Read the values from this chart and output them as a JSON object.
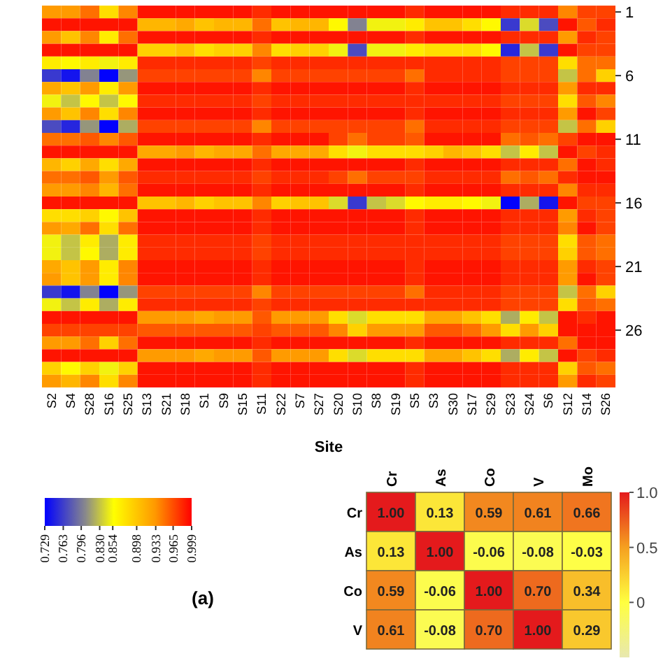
{
  "chart_data": [
    {
      "type": "heatmap",
      "xlabel": "Site",
      "categories": [
        "S2",
        "S4",
        "S28",
        "S16",
        "S25",
        "S13",
        "S21",
        "S18",
        "S1",
        "S9",
        "S15",
        "S11",
        "S22",
        "S7",
        "S27",
        "S20",
        "S10",
        "S8",
        "S19",
        "S5",
        "S3",
        "S30",
        "S17",
        "S29",
        "S23",
        "S24",
        "S6",
        "S12",
        "S14",
        "S26"
      ],
      "y_categories": [
        "1",
        null,
        null,
        null,
        null,
        "6",
        null,
        null,
        null,
        null,
        "11",
        null,
        null,
        null,
        null,
        "16",
        null,
        null,
        null,
        null,
        "21",
        null,
        null,
        null,
        null,
        "26",
        null,
        null,
        null,
        null
      ],
      "cells": [
        [
          0.93,
          0.93,
          0.95,
          0.88,
          0.94,
          0.99,
          0.99,
          0.99,
          0.99,
          0.99,
          0.99,
          0.98,
          0.99,
          0.99,
          0.99,
          0.99,
          0.99,
          0.99,
          0.99,
          0.98,
          0.99,
          0.99,
          0.99,
          0.99,
          0.98,
          0.98,
          0.98,
          0.94,
          0.97,
          0.97
        ],
        [
          0.99,
          0.99,
          0.99,
          0.99,
          0.99,
          0.91,
          0.91,
          0.92,
          0.9,
          0.91,
          0.91,
          0.95,
          0.9,
          0.91,
          0.91,
          0.86,
          0.8,
          0.85,
          0.85,
          0.87,
          0.9,
          0.9,
          0.88,
          0.86,
          0.76,
          0.84,
          0.77,
          0.99,
          0.96,
          0.98
        ],
        [
          0.93,
          0.9,
          0.94,
          0.87,
          0.95,
          0.99,
          0.99,
          0.99,
          0.99,
          0.99,
          0.99,
          0.98,
          0.99,
          0.99,
          0.99,
          0.99,
          0.99,
          0.99,
          0.99,
          0.98,
          0.99,
          0.99,
          0.99,
          0.99,
          0.98,
          0.98,
          0.98,
          0.93,
          0.98,
          0.97
        ],
        [
          0.99,
          0.99,
          0.99,
          0.99,
          0.99,
          0.89,
          0.89,
          0.9,
          0.88,
          0.89,
          0.89,
          0.94,
          0.88,
          0.89,
          0.89,
          0.85,
          0.77,
          0.85,
          0.85,
          0.87,
          0.88,
          0.88,
          0.88,
          0.86,
          0.75,
          0.83,
          0.76,
          0.99,
          0.97,
          0.97
        ],
        [
          0.87,
          0.86,
          0.87,
          0.85,
          0.87,
          0.98,
          0.98,
          0.98,
          0.98,
          0.98,
          0.98,
          0.97,
          0.98,
          0.98,
          0.98,
          0.98,
          0.98,
          0.98,
          0.98,
          0.98,
          0.98,
          0.98,
          0.98,
          0.98,
          0.97,
          0.97,
          0.97,
          0.88,
          0.95,
          0.95
        ],
        [
          0.76,
          0.74,
          0.8,
          0.73,
          0.81,
          0.97,
          0.97,
          0.97,
          0.97,
          0.97,
          0.97,
          0.94,
          0.97,
          0.97,
          0.97,
          0.97,
          0.97,
          0.97,
          0.97,
          0.95,
          0.98,
          0.98,
          0.98,
          0.98,
          0.97,
          0.97,
          0.97,
          0.83,
          0.95,
          0.89
        ],
        [
          0.92,
          0.9,
          0.93,
          0.87,
          0.93,
          0.99,
          0.99,
          0.99,
          0.99,
          0.99,
          0.99,
          0.98,
          0.99,
          0.99,
          0.99,
          0.99,
          0.99,
          0.99,
          0.99,
          0.98,
          0.99,
          0.99,
          0.99,
          0.99,
          0.98,
          0.98,
          0.98,
          0.93,
          0.98,
          0.98
        ],
        [
          0.85,
          0.83,
          0.86,
          0.83,
          0.86,
          0.98,
          0.98,
          0.98,
          0.98,
          0.98,
          0.98,
          0.97,
          0.98,
          0.98,
          0.98,
          0.98,
          0.98,
          0.98,
          0.98,
          0.98,
          0.98,
          0.98,
          0.98,
          0.98,
          0.97,
          0.97,
          0.97,
          0.88,
          0.96,
          0.94
        ],
        [
          0.93,
          0.9,
          0.94,
          0.88,
          0.94,
          0.99,
          0.99,
          0.99,
          0.99,
          0.99,
          0.99,
          0.98,
          0.99,
          0.99,
          0.99,
          0.99,
          0.99,
          0.99,
          0.99,
          0.98,
          0.99,
          0.99,
          0.99,
          0.99,
          0.98,
          0.98,
          0.98,
          0.93,
          0.99,
          0.97
        ],
        [
          0.77,
          0.75,
          0.81,
          0.73,
          0.82,
          0.97,
          0.97,
          0.97,
          0.97,
          0.97,
          0.97,
          0.94,
          0.97,
          0.97,
          0.97,
          0.97,
          0.97,
          0.97,
          0.97,
          0.95,
          0.98,
          0.98,
          0.98,
          0.98,
          0.97,
          0.97,
          0.97,
          0.83,
          0.95,
          0.89
        ],
        [
          0.95,
          0.95,
          0.96,
          0.94,
          0.96,
          0.99,
          0.99,
          0.99,
          0.99,
          0.99,
          0.99,
          0.98,
          0.99,
          0.99,
          0.99,
          0.97,
          0.95,
          0.97,
          0.97,
          0.96,
          0.99,
          0.99,
          0.99,
          0.99,
          0.95,
          0.96,
          0.95,
          0.97,
          0.99,
          0.99
        ],
        [
          0.99,
          0.99,
          0.99,
          0.99,
          0.99,
          0.92,
          0.92,
          0.93,
          0.91,
          0.92,
          0.92,
          0.95,
          0.92,
          0.92,
          0.92,
          0.88,
          0.85,
          0.88,
          0.88,
          0.88,
          0.89,
          0.91,
          0.9,
          0.88,
          0.83,
          0.87,
          0.83,
          0.99,
          0.97,
          0.98
        ],
        [
          0.91,
          0.89,
          0.92,
          0.88,
          0.92,
          0.99,
          0.99,
          0.99,
          0.99,
          0.99,
          0.99,
          0.98,
          0.99,
          0.99,
          0.99,
          0.99,
          0.99,
          0.99,
          0.99,
          0.98,
          0.99,
          0.99,
          0.99,
          0.99,
          0.98,
          0.98,
          0.98,
          0.95,
          0.99,
          0.98
        ],
        [
          0.95,
          0.95,
          0.96,
          0.93,
          0.96,
          0.98,
          0.98,
          0.98,
          0.98,
          0.98,
          0.98,
          0.97,
          0.98,
          0.98,
          0.98,
          0.97,
          0.95,
          0.97,
          0.97,
          0.97,
          0.98,
          0.98,
          0.98,
          0.98,
          0.95,
          0.96,
          0.95,
          0.98,
          0.99,
          0.99
        ],
        [
          0.93,
          0.93,
          0.94,
          0.91,
          0.95,
          0.99,
          0.99,
          0.99,
          0.99,
          0.99,
          0.99,
          0.98,
          0.99,
          0.99,
          0.99,
          0.99,
          0.99,
          0.99,
          0.99,
          0.98,
          0.99,
          0.99,
          0.99,
          0.99,
          0.98,
          0.98,
          0.98,
          0.94,
          0.98,
          0.98
        ],
        [
          0.99,
          0.99,
          0.99,
          0.99,
          0.99,
          0.9,
          0.9,
          0.91,
          0.89,
          0.9,
          0.9,
          0.94,
          0.89,
          0.9,
          0.9,
          0.84,
          0.76,
          0.83,
          0.84,
          0.86,
          0.87,
          0.87,
          0.86,
          0.85,
          0.73,
          0.82,
          0.74,
          0.99,
          0.97,
          0.97
        ],
        [
          0.88,
          0.88,
          0.89,
          0.86,
          0.9,
          0.99,
          0.99,
          0.99,
          0.99,
          0.99,
          0.99,
          0.98,
          0.99,
          0.99,
          0.99,
          0.99,
          0.99,
          0.99,
          0.99,
          0.98,
          0.99,
          0.99,
          0.99,
          0.99,
          0.98,
          0.98,
          0.98,
          0.93,
          0.98,
          0.97
        ],
        [
          0.93,
          0.92,
          0.95,
          0.88,
          0.95,
          0.99,
          0.99,
          0.99,
          0.99,
          0.99,
          0.99,
          0.98,
          0.99,
          0.99,
          0.99,
          0.99,
          0.99,
          0.99,
          0.99,
          0.98,
          0.99,
          0.99,
          0.99,
          0.99,
          0.98,
          0.98,
          0.98,
          0.94,
          0.99,
          0.97
        ],
        [
          0.85,
          0.83,
          0.87,
          0.82,
          0.87,
          0.98,
          0.98,
          0.98,
          0.98,
          0.98,
          0.98,
          0.97,
          0.98,
          0.98,
          0.98,
          0.98,
          0.98,
          0.98,
          0.98,
          0.98,
          0.98,
          0.98,
          0.98,
          0.98,
          0.97,
          0.97,
          0.97,
          0.88,
          0.96,
          0.95
        ],
        [
          0.85,
          0.83,
          0.86,
          0.82,
          0.87,
          0.98,
          0.98,
          0.98,
          0.98,
          0.98,
          0.98,
          0.97,
          0.98,
          0.98,
          0.98,
          0.98,
          0.98,
          0.98,
          0.98,
          0.98,
          0.98,
          0.98,
          0.98,
          0.98,
          0.97,
          0.97,
          0.97,
          0.89,
          0.96,
          0.95
        ],
        [
          0.92,
          0.9,
          0.93,
          0.87,
          0.94,
          0.99,
          0.99,
          0.99,
          0.99,
          0.99,
          0.99,
          0.98,
          0.99,
          0.99,
          0.99,
          0.99,
          0.99,
          0.99,
          0.99,
          0.98,
          0.99,
          0.99,
          0.99,
          0.99,
          0.98,
          0.98,
          0.98,
          0.93,
          0.98,
          0.97
        ],
        [
          0.93,
          0.9,
          0.93,
          0.87,
          0.94,
          0.99,
          0.99,
          0.99,
          0.99,
          0.99,
          0.99,
          0.98,
          0.99,
          0.99,
          0.99,
          0.99,
          0.99,
          0.99,
          0.99,
          0.98,
          0.99,
          0.99,
          0.99,
          0.99,
          0.98,
          0.98,
          0.98,
          0.93,
          0.99,
          0.97
        ],
        [
          0.76,
          0.74,
          0.8,
          0.73,
          0.81,
          0.97,
          0.97,
          0.97,
          0.97,
          0.97,
          0.97,
          0.94,
          0.97,
          0.97,
          0.97,
          0.97,
          0.97,
          0.97,
          0.97,
          0.95,
          0.98,
          0.98,
          0.98,
          0.98,
          0.97,
          0.97,
          0.97,
          0.83,
          0.95,
          0.89
        ],
        [
          0.85,
          0.83,
          0.87,
          0.82,
          0.87,
          0.98,
          0.98,
          0.98,
          0.98,
          0.98,
          0.98,
          0.97,
          0.98,
          0.98,
          0.98,
          0.98,
          0.98,
          0.98,
          0.98,
          0.98,
          0.98,
          0.98,
          0.98,
          0.98,
          0.97,
          0.97,
          0.97,
          0.88,
          0.96,
          0.95
        ],
        [
          0.99,
          0.99,
          0.99,
          0.99,
          0.99,
          0.93,
          0.93,
          0.93,
          0.92,
          0.93,
          0.93,
          0.96,
          0.93,
          0.93,
          0.93,
          0.88,
          0.84,
          0.88,
          0.88,
          0.88,
          0.92,
          0.92,
          0.9,
          0.88,
          0.82,
          0.87,
          0.83,
          0.99,
          0.98,
          0.99
        ],
        [
          0.97,
          0.97,
          0.97,
          0.97,
          0.97,
          0.96,
          0.96,
          0.96,
          0.96,
          0.96,
          0.96,
          0.97,
          0.96,
          0.96,
          0.96,
          0.94,
          0.89,
          0.93,
          0.93,
          0.93,
          0.96,
          0.96,
          0.95,
          0.93,
          0.88,
          0.93,
          0.89,
          0.99,
          0.99,
          0.99
        ],
        [
          0.93,
          0.93,
          0.95,
          0.89,
          0.95,
          0.99,
          0.99,
          0.99,
          0.99,
          0.99,
          0.99,
          0.98,
          0.99,
          0.99,
          0.99,
          0.99,
          0.99,
          0.99,
          0.99,
          0.98,
          0.99,
          0.99,
          0.99,
          0.99,
          0.98,
          0.98,
          0.98,
          0.95,
          0.99,
          0.99
        ],
        [
          0.99,
          0.99,
          0.99,
          0.99,
          0.99,
          0.93,
          0.93,
          0.93,
          0.92,
          0.93,
          0.93,
          0.96,
          0.93,
          0.93,
          0.93,
          0.88,
          0.84,
          0.88,
          0.88,
          0.88,
          0.92,
          0.92,
          0.9,
          0.88,
          0.82,
          0.87,
          0.83,
          0.99,
          0.97,
          0.98
        ],
        [
          0.89,
          0.86,
          0.89,
          0.85,
          0.89,
          0.99,
          0.99,
          0.99,
          0.99,
          0.99,
          0.99,
          0.98,
          0.99,
          0.99,
          0.99,
          0.99,
          0.99,
          0.99,
          0.99,
          0.98,
          0.99,
          0.99,
          0.99,
          0.99,
          0.98,
          0.98,
          0.98,
          0.89,
          0.96,
          0.95
        ],
        [
          0.93,
          0.91,
          0.94,
          0.88,
          0.94,
          0.99,
          0.99,
          0.99,
          0.99,
          0.99,
          0.99,
          0.98,
          0.99,
          0.99,
          0.99,
          0.99,
          0.99,
          0.99,
          0.99,
          0.98,
          0.99,
          0.99,
          0.99,
          0.99,
          0.98,
          0.98,
          0.98,
          0.93,
          0.98,
          0.97
        ]
      ],
      "clim": [
        0.729,
        0.999
      ],
      "cticks": [
        0.729,
        0.763,
        0.796,
        {
          "value": 0.83,
          "label": "0.830"
        },
        0.854,
        0.898,
        0.933,
        0.965,
        0.999
      ],
      "annotations": [
        "(a)"
      ]
    },
    {
      "type": "heatmap",
      "categories": [
        "Cr",
        "As",
        "Co",
        "V",
        "Mo"
      ],
      "y_categories": [
        "Cr",
        "As",
        "Co",
        "V"
      ],
      "cells": [
        [
          1,
          0.13,
          0.59,
          0.61,
          0.66
        ],
        [
          0.13,
          1,
          -0.06,
          -0.08,
          -0.03
        ],
        [
          0.59,
          -0.06,
          1,
          0.7,
          0.34
        ],
        [
          0.61,
          -0.08,
          0.7,
          1,
          0.29
        ]
      ],
      "cell_labels": [
        [
          "1.00",
          "0.13",
          "0.59",
          "0.61",
          "0.66"
        ],
        [
          "0.13",
          "1.00",
          "-0.06",
          "-0.08",
          "-0.03"
        ],
        [
          "0.59",
          "-0.06",
          "1.00",
          "0.70",
          "0.34"
        ],
        [
          "0.61",
          "-0.08",
          "0.70",
          "1.00",
          "0.29"
        ]
      ],
      "clim": [
        -0.5,
        1
      ],
      "cticks": [
        {
          "value": 1,
          "label": "1.0"
        },
        0.5,
        0
      ]
    }
  ]
}
